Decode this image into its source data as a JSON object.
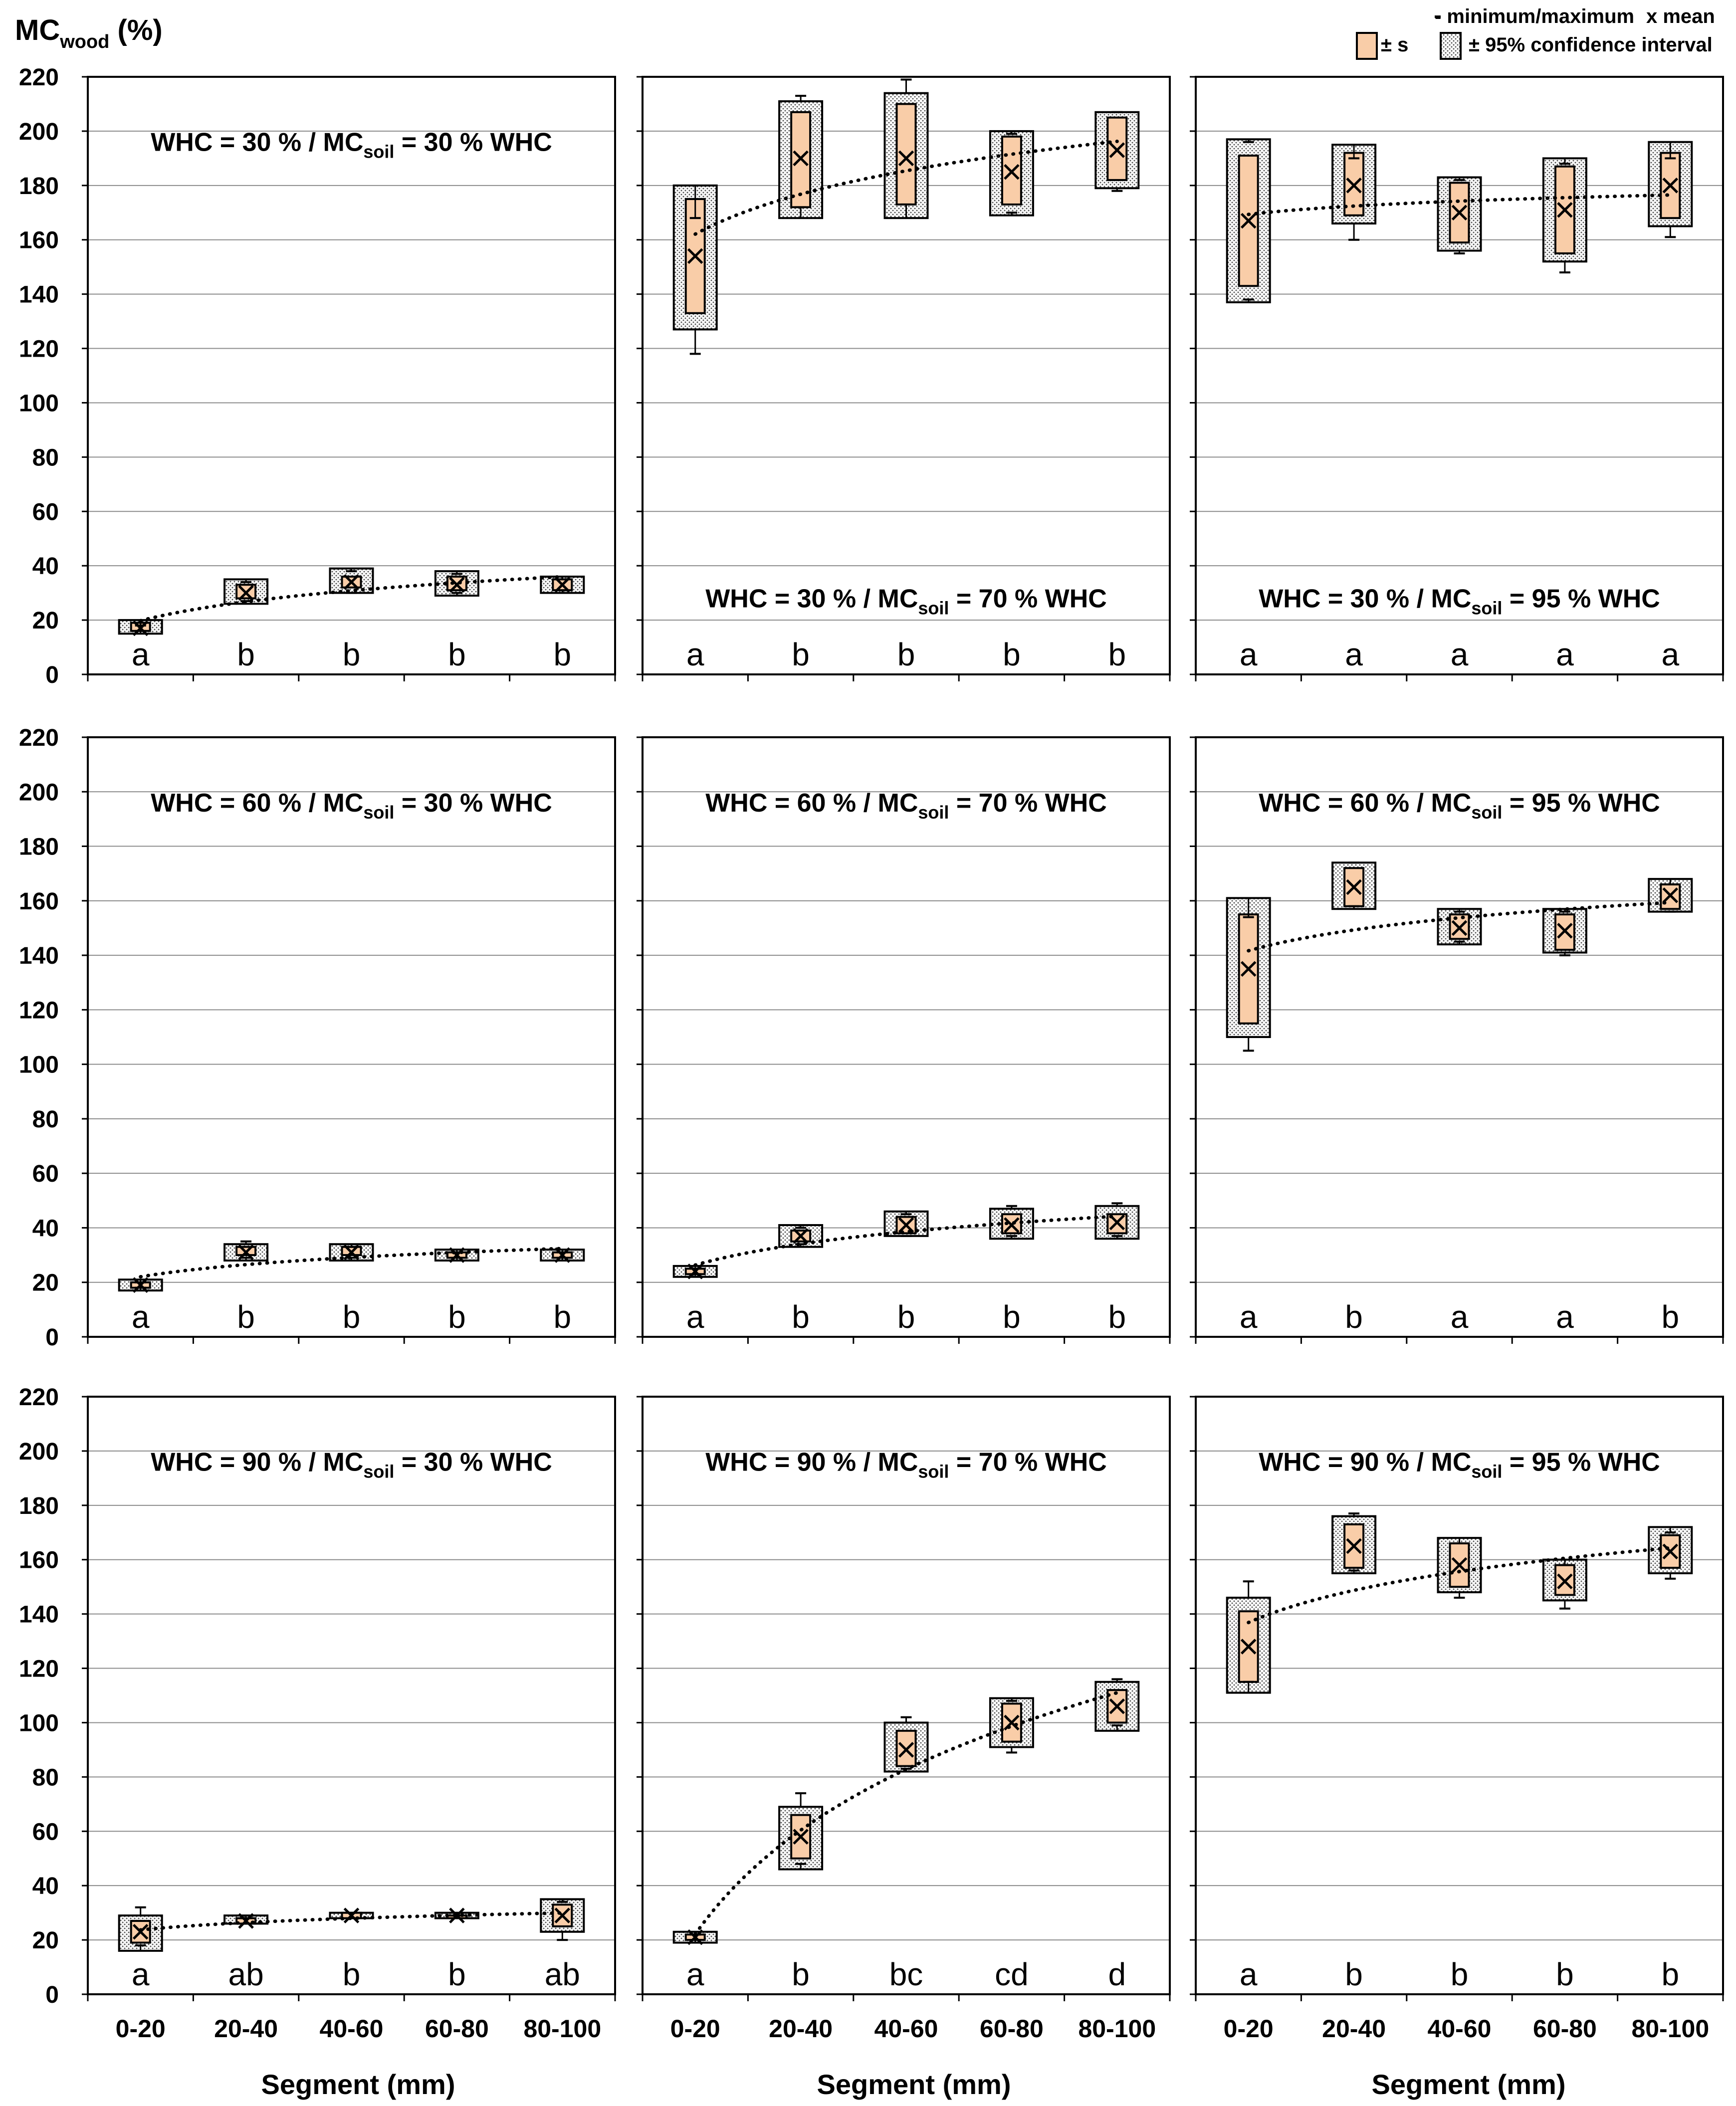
{
  "figure": {
    "y_axis_title": "MC",
    "y_axis_title_sub": "wood",
    "y_axis_title_unit": " (%)",
    "x_axis_title": "Segment (mm)"
  },
  "legend": {
    "minmax_label": "- minimum/maximum",
    "mean_label": "x mean",
    "sd_label": "± s",
    "ci_label": "± 95% confidence interval"
  },
  "colors": {
    "sd_box": "#f9cda8",
    "ci_box": "#e6e6e6",
    "stroke": "#000000",
    "grid": "#8c8c8c"
  },
  "chart_data": [
    {
      "type": "box",
      "panel": "row1-col1",
      "title": "WHC = 30 % / MC",
      "title_sub": "soil",
      "title_rest": " = 30 % WHC",
      "title_pos": "top",
      "categories": [
        "0-20",
        "20-40",
        "40-60",
        "60-80",
        "80-100"
      ],
      "ylim": [
        0,
        220
      ],
      "ytick_step": 20,
      "ylabel": "MCwood (%)",
      "xlabel": "",
      "mean": [
        17,
        30,
        34,
        33,
        33
      ],
      "sd_low": [
        16,
        28,
        32,
        31,
        31
      ],
      "sd_high": [
        19,
        33,
        36,
        36,
        35
      ],
      "ci_low": [
        15,
        26,
        30,
        29,
        30
      ],
      "ci_high": [
        20,
        35,
        39,
        38,
        36
      ],
      "min": [
        16,
        27,
        30,
        30,
        31
      ],
      "max": [
        18,
        34,
        38,
        37,
        35
      ],
      "letters": [
        "a",
        "b",
        "b",
        "b",
        "b"
      ],
      "trendline": "logarithmic"
    },
    {
      "type": "box",
      "panel": "row1-col2",
      "title": "WHC = 30 % / MC",
      "title_sub": "soil",
      "title_rest": " = 70 % WHC",
      "title_pos": "bottom",
      "categories": [
        "0-20",
        "20-40",
        "40-60",
        "60-80",
        "80-100"
      ],
      "ylim": [
        0,
        220
      ],
      "ytick_step": 20,
      "xlabel": "",
      "mean": [
        154,
        190,
        190,
        185,
        193
      ],
      "sd_low": [
        133,
        172,
        173,
        173,
        182
      ],
      "sd_high": [
        175,
        207,
        210,
        198,
        205
      ],
      "ci_low": [
        127,
        168,
        168,
        169,
        179
      ],
      "ci_high": [
        180,
        211,
        214,
        200,
        207
      ],
      "min": [
        118,
        172,
        173,
        170,
        178
      ],
      "max": [
        168,
        213,
        219,
        199,
        207
      ],
      "letters": [
        "a",
        "b",
        "b",
        "b",
        "b"
      ],
      "trendline": "logarithmic"
    },
    {
      "type": "box",
      "panel": "row1-col3",
      "title": "WHC = 30 % / MC",
      "title_sub": "soil",
      "title_rest": " = 95 % WHC",
      "title_pos": "bottom",
      "categories": [
        "0-20",
        "20-40",
        "40-60",
        "60-80",
        "80-100"
      ],
      "ylim": [
        0,
        220
      ],
      "ytick_step": 20,
      "xlabel": "",
      "mean": [
        167,
        180,
        170,
        171,
        180
      ],
      "sd_low": [
        143,
        169,
        159,
        155,
        168
      ],
      "sd_high": [
        191,
        192,
        181,
        187,
        192
      ],
      "ci_low": [
        137,
        166,
        156,
        152,
        165
      ],
      "ci_high": [
        197,
        195,
        183,
        190,
        196
      ],
      "min": [
        138,
        160,
        155,
        148,
        161
      ],
      "max": [
        196,
        190,
        182,
        188,
        190
      ],
      "letters": [
        "a",
        "a",
        "a",
        "a",
        "a"
      ],
      "trendline": "logarithmic"
    },
    {
      "type": "box",
      "panel": "row2-col1",
      "title": "WHC = 60 % / MC",
      "title_sub": "soil",
      "title_rest": " = 30 % WHC",
      "title_pos": "top",
      "categories": [
        "0-20",
        "20-40",
        "40-60",
        "60-80",
        "80-100"
      ],
      "ylim": [
        0,
        220
      ],
      "ytick_step": 20,
      "ylabel": "MCwood (%)",
      "xlabel": "",
      "mean": [
        19,
        31,
        31,
        30,
        30
      ],
      "sd_low": [
        18,
        30,
        30,
        29,
        29
      ],
      "sd_high": [
        20,
        33,
        33,
        31,
        31
      ],
      "ci_low": [
        17,
        28,
        28,
        28,
        28
      ],
      "ci_high": [
        21,
        34,
        34,
        32,
        32
      ],
      "min": [
        18,
        29,
        29,
        29,
        29
      ],
      "max": [
        20,
        35,
        33,
        31,
        31
      ],
      "letters": [
        "a",
        "b",
        "b",
        "b",
        "b"
      ],
      "trendline": "logarithmic"
    },
    {
      "type": "box",
      "panel": "row2-col2",
      "title": "WHC = 60 % / MC",
      "title_sub": "soil",
      "title_rest": " = 70 % WHC",
      "title_pos": "top",
      "categories": [
        "0-20",
        "20-40",
        "40-60",
        "60-80",
        "80-100"
      ],
      "ylim": [
        0,
        220
      ],
      "ytick_step": 20,
      "xlabel": "",
      "mean": [
        24,
        37,
        41,
        41,
        42
      ],
      "sd_low": [
        23,
        35,
        38,
        38,
        38
      ],
      "sd_high": [
        25,
        39,
        44,
        45,
        45
      ],
      "ci_low": [
        22,
        33,
        37,
        36,
        36
      ],
      "ci_high": [
        26,
        41,
        46,
        47,
        48
      ],
      "min": [
        23,
        34,
        37,
        37,
        37
      ],
      "max": [
        25,
        40,
        45,
        48,
        49
      ],
      "letters": [
        "a",
        "b",
        "b",
        "b",
        "b"
      ],
      "trendline": "logarithmic"
    },
    {
      "type": "box",
      "panel": "row2-col3",
      "title": "WHC = 60 % / MC",
      "title_sub": "soil",
      "title_rest": " = 95 % WHC",
      "title_pos": "top",
      "categories": [
        "0-20",
        "20-40",
        "40-60",
        "60-80",
        "80-100"
      ],
      "ylim": [
        0,
        220
      ],
      "ytick_step": 20,
      "xlabel": "",
      "mean": [
        135,
        165,
        150,
        149,
        162
      ],
      "sd_low": [
        115,
        158,
        146,
        142,
        157
      ],
      "sd_high": [
        155,
        172,
        155,
        155,
        166
      ],
      "ci_low": [
        110,
        157,
        144,
        141,
        156
      ],
      "ci_high": [
        161,
        174,
        157,
        157,
        168
      ],
      "min": [
        105,
        158,
        145,
        140,
        156
      ],
      "max": [
        154,
        174,
        156,
        156,
        166
      ],
      "letters": [
        "a",
        "b",
        "a",
        "a",
        "b"
      ],
      "trendline": "logarithmic"
    },
    {
      "type": "box",
      "panel": "row3-col1",
      "title": "WHC = 90 % / MC",
      "title_sub": "soil",
      "title_rest": " = 30 % WHC",
      "title_pos": "top",
      "categories": [
        "0-20",
        "20-40",
        "40-60",
        "60-80",
        "80-100"
      ],
      "ylim": [
        0,
        220
      ],
      "ytick_step": 20,
      "ylabel": "MCwood (%)",
      "xlabel": "Segment (mm)",
      "mean": [
        23,
        27,
        29,
        29,
        29
      ],
      "sd_low": [
        19,
        26,
        28,
        28,
        25
      ],
      "sd_high": [
        27,
        28,
        30,
        29,
        33
      ],
      "ci_low": [
        16,
        26,
        28,
        28,
        23
      ],
      "ci_high": [
        29,
        29,
        30,
        30,
        35
      ],
      "min": [
        18,
        26,
        28,
        28,
        20
      ],
      "max": [
        32,
        28,
        30,
        29,
        34
      ],
      "letters": [
        "a",
        "ab",
        "b",
        "b",
        "ab"
      ],
      "trendline": "logarithmic"
    },
    {
      "type": "box",
      "panel": "row3-col2",
      "title": "WHC = 90 % / MC",
      "title_sub": "soil",
      "title_rest": " = 70 % WHC",
      "title_pos": "top",
      "categories": [
        "0-20",
        "20-40",
        "40-60",
        "60-80",
        "80-100"
      ],
      "ylim": [
        0,
        220
      ],
      "ytick_step": 20,
      "xlabel": "Segment (mm)",
      "mean": [
        21,
        58,
        90,
        100,
        106
      ],
      "sd_low": [
        20,
        50,
        84,
        93,
        100
      ],
      "sd_high": [
        22,
        66,
        97,
        107,
        112
      ],
      "ci_low": [
        19,
        46,
        82,
        91,
        97
      ],
      "ci_high": [
        23,
        69,
        100,
        109,
        115
      ],
      "min": [
        20,
        48,
        83,
        89,
        99
      ],
      "max": [
        22,
        74,
        102,
        108,
        116
      ],
      "letters": [
        "a",
        "b",
        "bc",
        "cd",
        "d"
      ],
      "trendline": "logarithmic"
    },
    {
      "type": "box",
      "panel": "row3-col3",
      "title": "WHC = 90 % / MC",
      "title_sub": "soil",
      "title_rest": " = 95 % WHC",
      "title_pos": "top",
      "categories": [
        "0-20",
        "20-40",
        "40-60",
        "60-80",
        "80-100"
      ],
      "ylim": [
        0,
        220
      ],
      "ytick_step": 20,
      "xlabel": "Segment (mm)",
      "mean": [
        128,
        165,
        158,
        152,
        163
      ],
      "sd_low": [
        115,
        157,
        150,
        147,
        157
      ],
      "sd_high": [
        141,
        173,
        166,
        158,
        169
      ],
      "ci_low": [
        111,
        155,
        148,
        145,
        155
      ],
      "ci_high": [
        146,
        176,
        168,
        160,
        172
      ],
      "min": [
        115,
        156,
        146,
        142,
        153
      ],
      "max": [
        152,
        177,
        166,
        158,
        170
      ],
      "letters": [
        "a",
        "b",
        "b",
        "b",
        "b"
      ],
      "trendline": "logarithmic"
    }
  ]
}
